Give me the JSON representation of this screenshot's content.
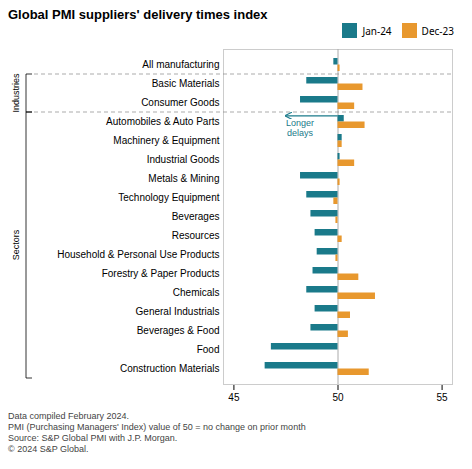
{
  "chart_data": {
    "type": "bar",
    "orientation": "horizontal",
    "title": "Global PMI suppliers' delivery times index",
    "categories": [
      "All manufacturing",
      "Basic Materials",
      "Consumer Goods",
      "Automobiles & Auto Parts",
      "Machinery & Equipment",
      "Industrial Goods",
      "Metals & Mining",
      "Technology Equipment",
      "Beverages",
      "Resources",
      "Household & Personal Use Products",
      "Forestry & Paper Products",
      "Chemicals",
      "General Industrials",
      "Beverages & Food",
      "Food",
      "Construction Materials"
    ],
    "series": [
      {
        "name": "Jan-24",
        "color": "#1a7a8a",
        "values": [
          49.8,
          48.5,
          48.2,
          50.3,
          50.2,
          50.1,
          48.2,
          48.5,
          48.7,
          48.9,
          49.0,
          48.8,
          48.5,
          48.9,
          48.7,
          46.8,
          46.5
        ]
      },
      {
        "name": "Dec-23",
        "color": "#e8982e",
        "values": [
          50.1,
          51.2,
          50.8,
          51.3,
          50.2,
          50.8,
          50.1,
          49.8,
          49.9,
          50.2,
          49.9,
          51.0,
          51.8,
          50.6,
          50.5,
          50.0,
          51.5
        ]
      }
    ],
    "baseline": 50,
    "xlim": [
      44.5,
      55.5
    ],
    "xticks": [
      45,
      50,
      55
    ],
    "legend": "upper right",
    "groups": [
      {
        "label": "Industries",
        "categories": [
          "Basic Materials",
          "Consumer Goods"
        ]
      },
      {
        "label": "Sectors",
        "categories": [
          "Automobiles & Auto Parts",
          "Machinery & Equipment",
          "Industrial Goods",
          "Metals & Mining",
          "Technology Equipment",
          "Beverages",
          "Resources",
          "Household & Personal Use Products",
          "Forestry & Paper Products",
          "Chemicals",
          "General Industrials",
          "Beverages & Food",
          "Food",
          "Construction Materials"
        ]
      }
    ],
    "annotations": [
      {
        "text": "Longer\ndelays",
        "color": "#1a7a8a",
        "x": 48.2,
        "arrow_from": 50.0,
        "arrow_to": 47.5,
        "category": "Automobiles & Auto Parts"
      }
    ],
    "footnote": [
      "Data compiled February 2024.",
      "PMI (Purchasing Managers' Index) value of 50 = no change on prior month",
      "Source: S&P Global PMI with J.P. Morgan.",
      "© 2024 S&P Global."
    ]
  }
}
